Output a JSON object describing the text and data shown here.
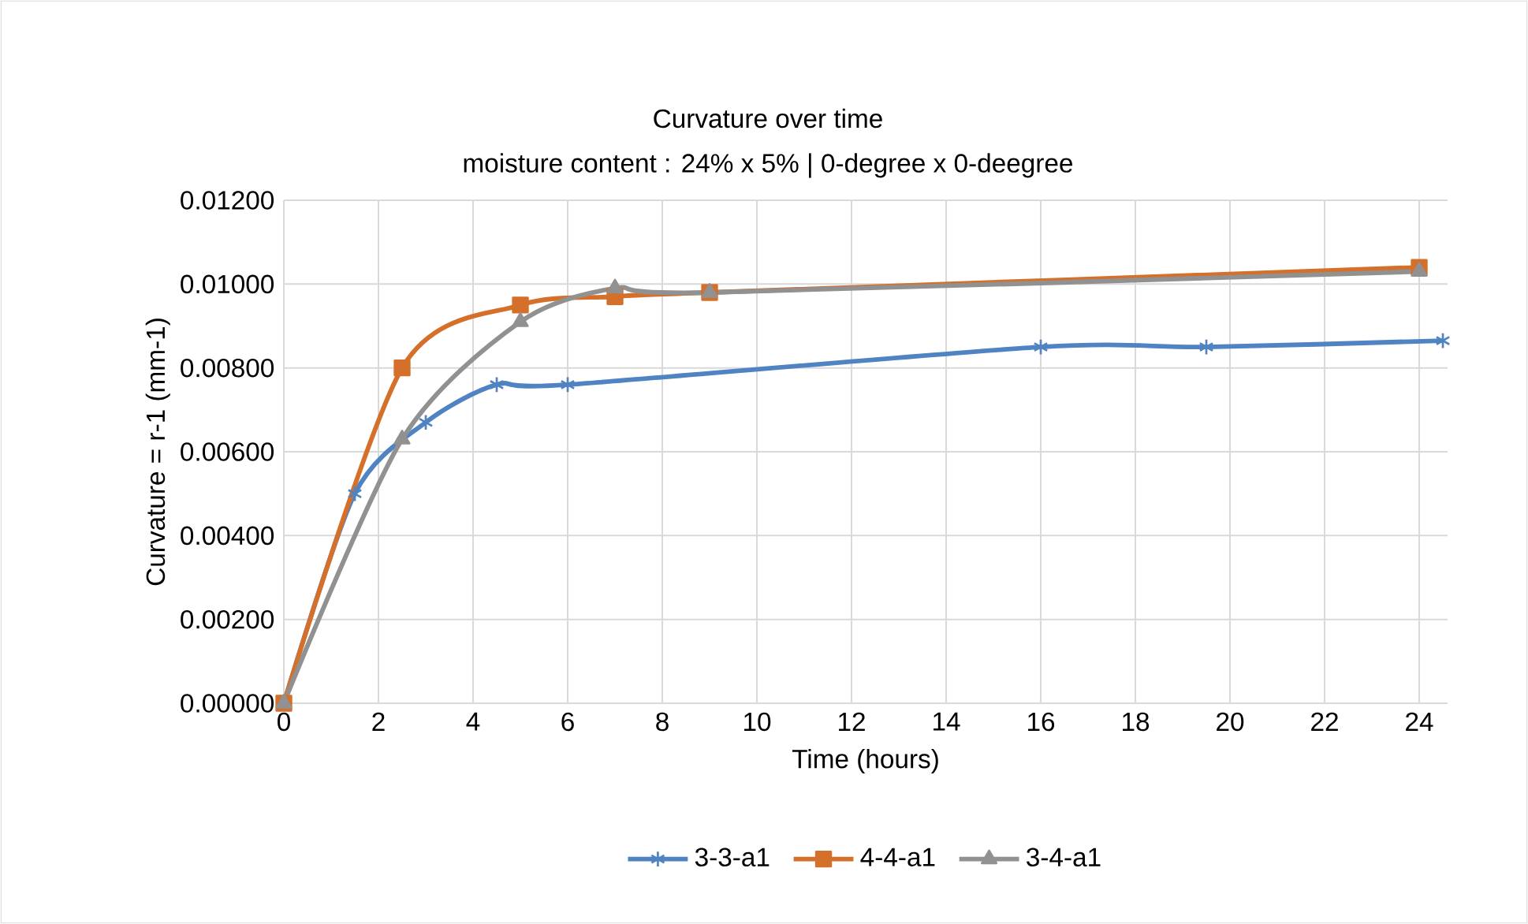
{
  "chart_data": {
    "type": "line",
    "title": "Curvature over time",
    "subtitle": "moisture content : 24%  x  5% | 0-degree x 0-deegree",
    "xlabel": "Time (hours)",
    "ylabel": "Curvature = r-1 (mm-1)",
    "xlim": [
      0,
      24.6
    ],
    "xticks": [
      0,
      2,
      4,
      6,
      8,
      10,
      12,
      14,
      16,
      18,
      20,
      22,
      24
    ],
    "ylim": [
      0,
      0.012
    ],
    "yticks": [
      {
        "value": 0,
        "label": "0.00000"
      },
      {
        "value": 0.002,
        "label": "0.00200"
      },
      {
        "value": 0.004,
        "label": "0.00400"
      },
      {
        "value": 0.006,
        "label": "0.00600"
      },
      {
        "value": 0.008,
        "label": "0.00800"
      },
      {
        "value": 0.01,
        "label": "0.01000"
      },
      {
        "value": 0.012,
        "label": "0.01200"
      }
    ],
    "grid": true,
    "legend": "bottom",
    "series": [
      {
        "name": "3-3-a1",
        "color": "#5083c1",
        "marker": "cross",
        "x": [
          0,
          1.5,
          3,
          4.5,
          6,
          16,
          19.5,
          24.5
        ],
        "values": [
          0,
          0.005,
          0.0067,
          0.0076,
          0.0076,
          0.0085,
          0.0085,
          0.00865
        ]
      },
      {
        "name": "4-4-a1",
        "color": "#d5702a",
        "marker": "square",
        "x": [
          0,
          2.5,
          5,
          7,
          9,
          24
        ],
        "values": [
          0,
          0.008,
          0.0095,
          0.0097,
          0.0098,
          0.0104
        ]
      },
      {
        "name": "3-4-a1",
        "color": "#919191",
        "marker": "triangle",
        "x": [
          0,
          2.5,
          5,
          7,
          9,
          24
        ],
        "values": [
          0,
          0.0063,
          0.0091,
          0.0099,
          0.0098,
          0.0103
        ]
      }
    ]
  }
}
